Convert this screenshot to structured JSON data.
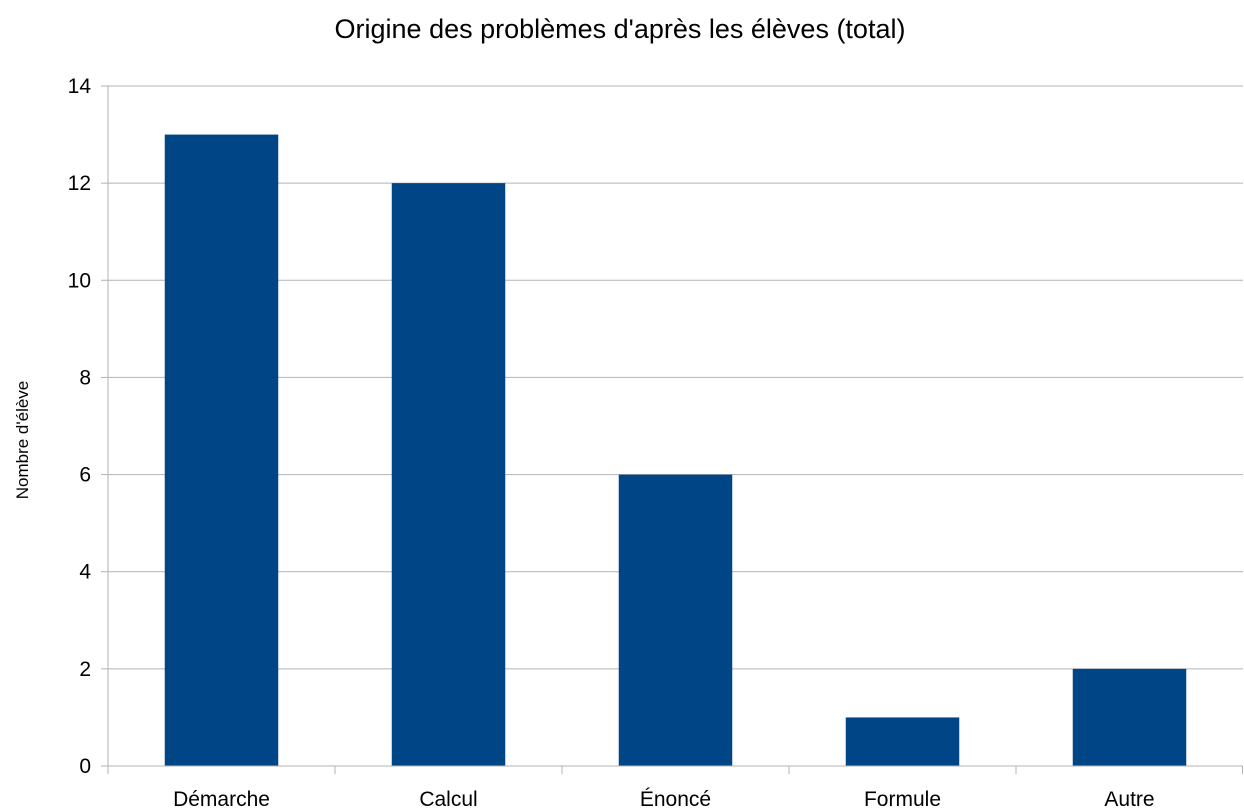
{
  "chart_data": {
    "type": "bar",
    "title": "Origine des problèmes d'après les élèves (total)",
    "xlabel": "",
    "ylabel": "Nombre d'élève",
    "categories": [
      "Démarche",
      "Calcul",
      "Énoncé",
      "Formule",
      "Autre"
    ],
    "values": [
      13,
      12,
      6,
      1,
      2
    ],
    "ylim": [
      0,
      14
    ],
    "yticks": [
      0,
      2,
      4,
      6,
      8,
      10,
      12,
      14
    ],
    "grid": true,
    "legend": "none",
    "bar_color": "#004586"
  }
}
